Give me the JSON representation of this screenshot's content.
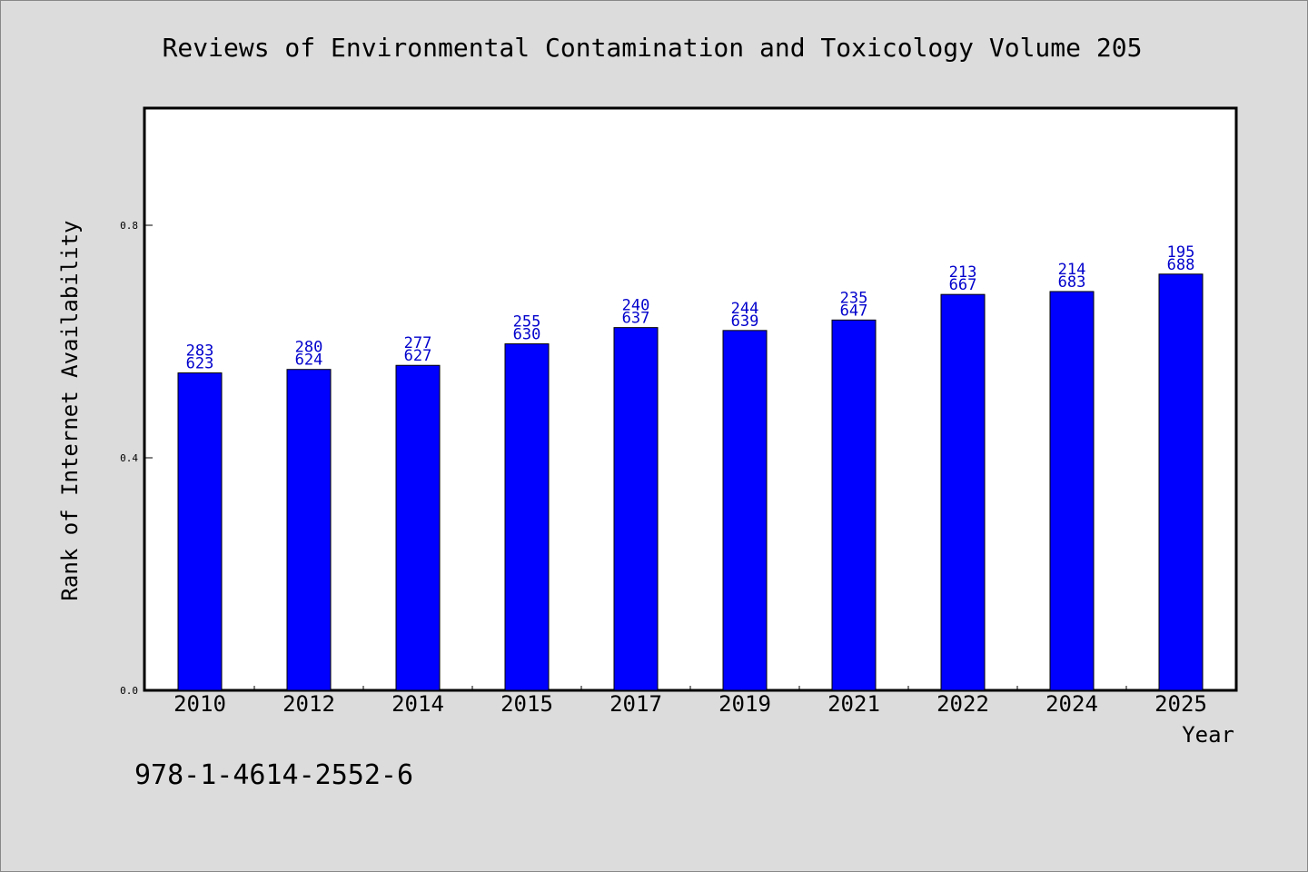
{
  "chart_data": {
    "type": "bar",
    "title": "Reviews of Environmental Contamination and Toxicology Volume 205",
    "xlabel": "Year",
    "ylabel": "Rank of Internet Availability",
    "categories": [
      "2010",
      "2012",
      "2014",
      "2015",
      "2017",
      "2019",
      "2021",
      "2022",
      "2024",
      "2025"
    ],
    "values": [
      0.546,
      0.552,
      0.559,
      0.596,
      0.624,
      0.619,
      0.637,
      0.681,
      0.686,
      0.716
    ],
    "labels_top": [
      "283",
      "280",
      "277",
      "255",
      "240",
      "244",
      "235",
      "213",
      "214",
      "195"
    ],
    "labels_bottom": [
      "623",
      "624",
      "627",
      "630",
      "637",
      "639",
      "647",
      "667",
      "683",
      "688"
    ],
    "ylim": [
      0,
      1.0
    ],
    "yticks": [
      0.0,
      0.4,
      0.8
    ],
    "ytick_labels": [
      "0.0",
      "0.4",
      "0.8"
    ],
    "bar_color": "#0000ff",
    "label_color": "#0000cc",
    "grid": false
  },
  "footer": {
    "isbn": "978-1-4614-2552-6"
  }
}
